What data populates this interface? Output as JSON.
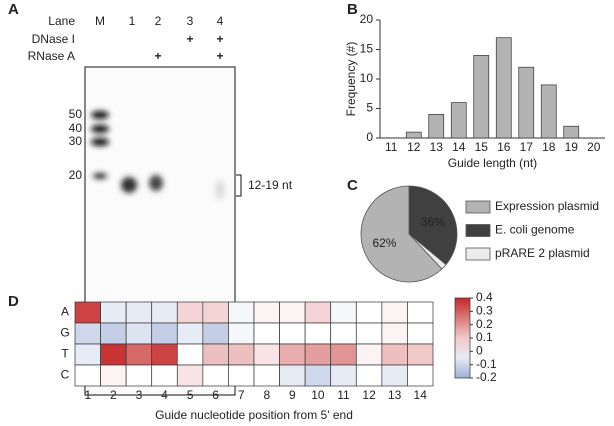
{
  "panels": [
    "A",
    "B",
    "C",
    "D"
  ],
  "gel": {
    "lane_heading": "Lane",
    "lanes": [
      "M",
      "1",
      "2",
      "3",
      "4"
    ],
    "treatments": [
      {
        "name": "DNase I",
        "marks": [
          null,
          null,
          null,
          "+",
          "+"
        ]
      },
      {
        "name": "RNase A",
        "marks": [
          null,
          null,
          "+",
          null,
          "+"
        ]
      }
    ],
    "markers": [
      "50",
      "40",
      "30",
      "20"
    ],
    "annotation": "12-19 nt"
  },
  "chart_data": [
    {
      "type": "bar",
      "xlabel": "Guide length (nt)",
      "ylabel": "Frequency (#)",
      "categories": [
        "11",
        "12",
        "13",
        "14",
        "15",
        "16",
        "17",
        "18",
        "19",
        "20"
      ],
      "values": [
        0,
        1,
        4,
        6,
        14,
        17,
        12,
        9,
        2,
        0
      ],
      "color": "#b3b3b3",
      "ylim": [
        0,
        20
      ],
      "yticks": [
        0,
        5,
        10,
        15,
        20
      ]
    },
    {
      "type": "pie",
      "labels": [
        "E. coli genome",
        "pRARE 2 plasmid",
        "Expression plasmid"
      ],
      "values": [
        36,
        2,
        62
      ],
      "value_labels": [
        "36%",
        null,
        "62%"
      ],
      "colors": [
        "#404040",
        "#ececec",
        "#b3b3b3"
      ]
    },
    {
      "type": "heatmap",
      "xlabel": "Guide nucleotide position from 5' end",
      "rows": [
        "A",
        "G",
        "T",
        "C"
      ],
      "categories": [
        "1",
        "2",
        "3",
        "4",
        "5",
        "6",
        "7",
        "8",
        "9",
        "10",
        "11",
        "12",
        "13",
        "14"
      ],
      "values": [
        [
          0.35,
          -0.05,
          -0.05,
          -0.05,
          0.08,
          0.08,
          -0.02,
          0.02,
          0.02,
          0.08,
          -0.02,
          0,
          0.02,
          0
        ],
        [
          -0.1,
          -0.12,
          -0.07,
          -0.12,
          -0.05,
          -0.12,
          -0.02,
          0,
          0,
          0,
          0,
          0,
          0.02,
          0
        ],
        [
          -0.05,
          0.38,
          0.28,
          0.35,
          0,
          0.12,
          0.12,
          0.05,
          0.15,
          0.18,
          0.2,
          0.02,
          0.12,
          0.1
        ],
        [
          0,
          0.02,
          0,
          0,
          0.05,
          0,
          0,
          0,
          -0.05,
          -0.1,
          -0.05,
          0,
          -0.05,
          0
        ]
      ],
      "clim": [
        -0.2,
        0.4
      ],
      "cticks": [
        0.4,
        0.3,
        0.2,
        0.1,
        0,
        -0.1,
        -0.2
      ],
      "high_color": "#c62828",
      "low_color": "#3a5fb0"
    }
  ]
}
